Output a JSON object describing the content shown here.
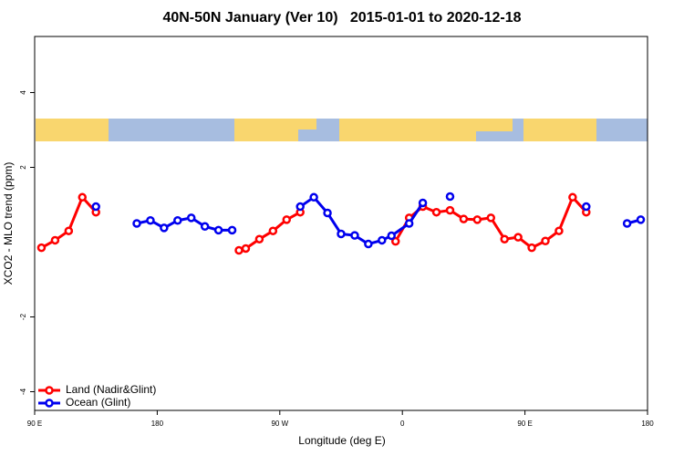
{
  "chart_data": {
    "type": "line",
    "title": "40N-50N January (Ver 10)   2015-01-01 to 2020-12-18",
    "x_label": "Longitude (deg E)",
    "y_label": "XCO2 - MLO trend (ppm)",
    "xlim": [
      90,
      540
    ],
    "ylim": [
      -4.5,
      5.5
    ],
    "xticks": [
      {
        "value": 90,
        "label": "90 E"
      },
      {
        "value": 180,
        "label": "180"
      },
      {
        "value": 270,
        "label": "90 W"
      },
      {
        "value": 360,
        "label": "0"
      },
      {
        "value": 450,
        "label": "90 E"
      },
      {
        "value": 540,
        "label": "180"
      }
    ],
    "yticks": [
      -4,
      -2,
      2,
      4
    ],
    "legend": "bottom-left",
    "series": [
      {
        "name": "Land (Nadir&Glint)",
        "color": "#ff0000",
        "x": [
          95,
          105,
          115,
          125,
          135,
          145,
          240,
          245,
          255,
          265,
          275,
          285,
          295,
          355,
          365,
          375,
          385,
          395,
          405,
          415,
          425,
          435,
          445,
          455,
          465,
          475,
          485,
          495
        ],
        "values": [
          -0.15,
          0.05,
          0.3,
          1.2,
          0.8,
          null,
          -0.22,
          -0.17,
          0.08,
          0.3,
          0.6,
          0.8,
          null,
          0.02,
          0.65,
          0.95,
          0.8,
          0.85,
          0.62,
          0.6,
          0.65,
          0.08,
          0.13,
          -0.15,
          0.03,
          0.3,
          1.2,
          0.8
        ]
      },
      {
        "name": "Ocean (Glint)",
        "color": "#0000ee",
        "x": [
          135,
          145,
          165,
          175,
          185,
          195,
          205,
          215,
          225,
          235,
          245,
          285,
          295,
          305,
          315,
          325,
          335,
          345,
          352,
          365,
          375,
          385,
          395,
          405,
          495,
          505,
          525,
          535
        ],
        "values": [
          0.95,
          null,
          0.5,
          0.58,
          0.38,
          0.58,
          0.65,
          0.42,
          0.32,
          0.32,
          null,
          0.95,
          1.2,
          0.78,
          0.22,
          0.18,
          -0.05,
          0.05,
          0.17,
          0.5,
          1.05,
          null,
          1.22,
          null,
          0.95,
          null,
          0.5,
          0.6
        ]
      }
    ]
  }
}
